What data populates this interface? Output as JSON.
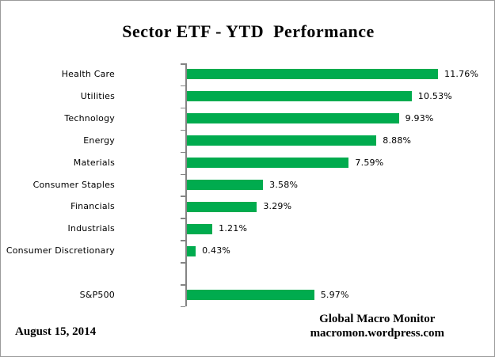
{
  "title": "Sector ETF - YTD  Performance",
  "chart_data": {
    "type": "bar",
    "orientation": "horizontal",
    "categories": [
      "Health Care",
      "Utilities",
      "Technology",
      "Energy",
      "Materials",
      "Consumer Staples",
      "Financials",
      "Industrials",
      "Consumer Discretionary",
      "",
      "S&P500"
    ],
    "values": [
      11.76,
      10.53,
      9.93,
      8.88,
      7.59,
      3.58,
      3.29,
      1.21,
      0.43,
      null,
      5.97
    ],
    "value_labels": [
      "11.76%",
      "10.53%",
      "9.93%",
      "8.88%",
      "7.59%",
      "3.58%",
      "3.29%",
      "1.21%",
      "0.43%",
      "",
      "5.97%"
    ],
    "xlim": [
      0,
      12
    ],
    "grid": false,
    "legend": false,
    "bar_color": "#00AB4E",
    "axis_color": "#848484",
    "text_color": "#000000"
  },
  "footer": {
    "date": "August 15, 2014",
    "source_line1": "Global Macro Monitor",
    "source_line2": "macromon.wordpress.com"
  }
}
